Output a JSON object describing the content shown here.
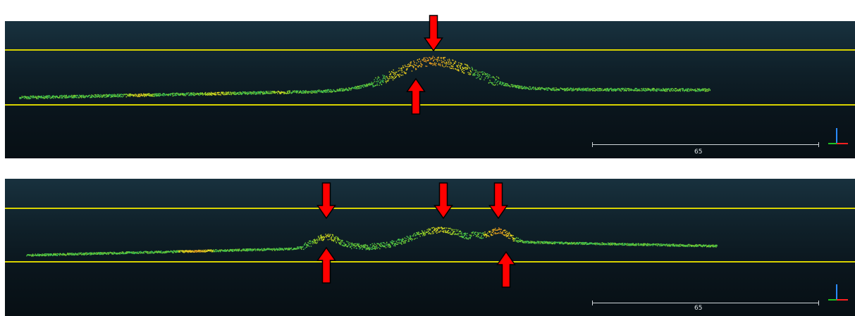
{
  "colors": {
    "guide_line": "#d8d200",
    "arrow_fill": "#ff0000",
    "arrow_stroke": "#000000",
    "scale_bar": "#cfd6da"
  },
  "panels": [
    {
      "id": "top",
      "scale_bar_label": "65",
      "arrows_down": 1,
      "arrows_up": 1
    },
    {
      "id": "bottom",
      "scale_bar_label": "65",
      "arrows_down": 3,
      "arrows_up": 2
    }
  ],
  "icons": {
    "axis_triad": "xyz-axis-icon",
    "arrow_down": "arrow-down-icon",
    "arrow_up": "arrow-up-icon"
  }
}
